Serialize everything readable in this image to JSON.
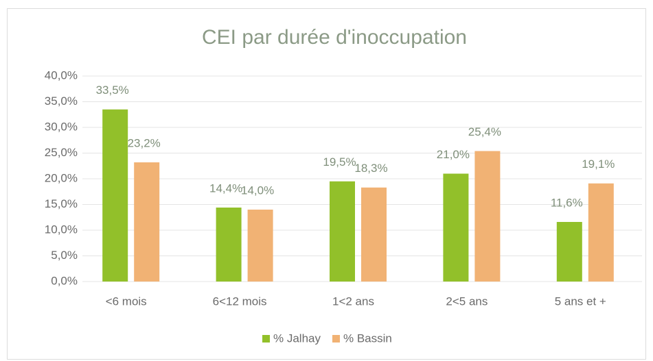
{
  "chart_data": {
    "type": "bar",
    "title": "CEI par durée d'inoccupation",
    "categories": [
      "<6 mois",
      "6<12 mois",
      "1<2 ans",
      "2<5 ans",
      "5 ans et +"
    ],
    "series": [
      {
        "name": "% Jalhay",
        "color": "#92c02a",
        "values": [
          33.5,
          14.4,
          19.5,
          21.0,
          11.6
        ],
        "value_labels": [
          "33,5%",
          "14,4%",
          "19,5%",
          "21,0%",
          "11,6%"
        ]
      },
      {
        "name": "% Bassin",
        "color": "#f1b274",
        "values": [
          23.2,
          14.0,
          18.3,
          25.4,
          19.1
        ],
        "value_labels": [
          "23,2%",
          "14,0%",
          "18,3%",
          "25,4%",
          "19,1%"
        ]
      }
    ],
    "ylim": [
      0,
      40
    ],
    "yticks": [
      {
        "value": 0,
        "label": "0,0%"
      },
      {
        "value": 5,
        "label": "5,0%"
      },
      {
        "value": 10,
        "label": "10,0%"
      },
      {
        "value": 15,
        "label": "15,0%"
      },
      {
        "value": 20,
        "label": "20,0%"
      },
      {
        "value": 25,
        "label": "25,0%"
      },
      {
        "value": 30,
        "label": "30,0%"
      },
      {
        "value": 35,
        "label": "35,0%"
      },
      {
        "value": 40,
        "label": "40,0%"
      }
    ],
    "grid": true,
    "legend": "bottom"
  }
}
